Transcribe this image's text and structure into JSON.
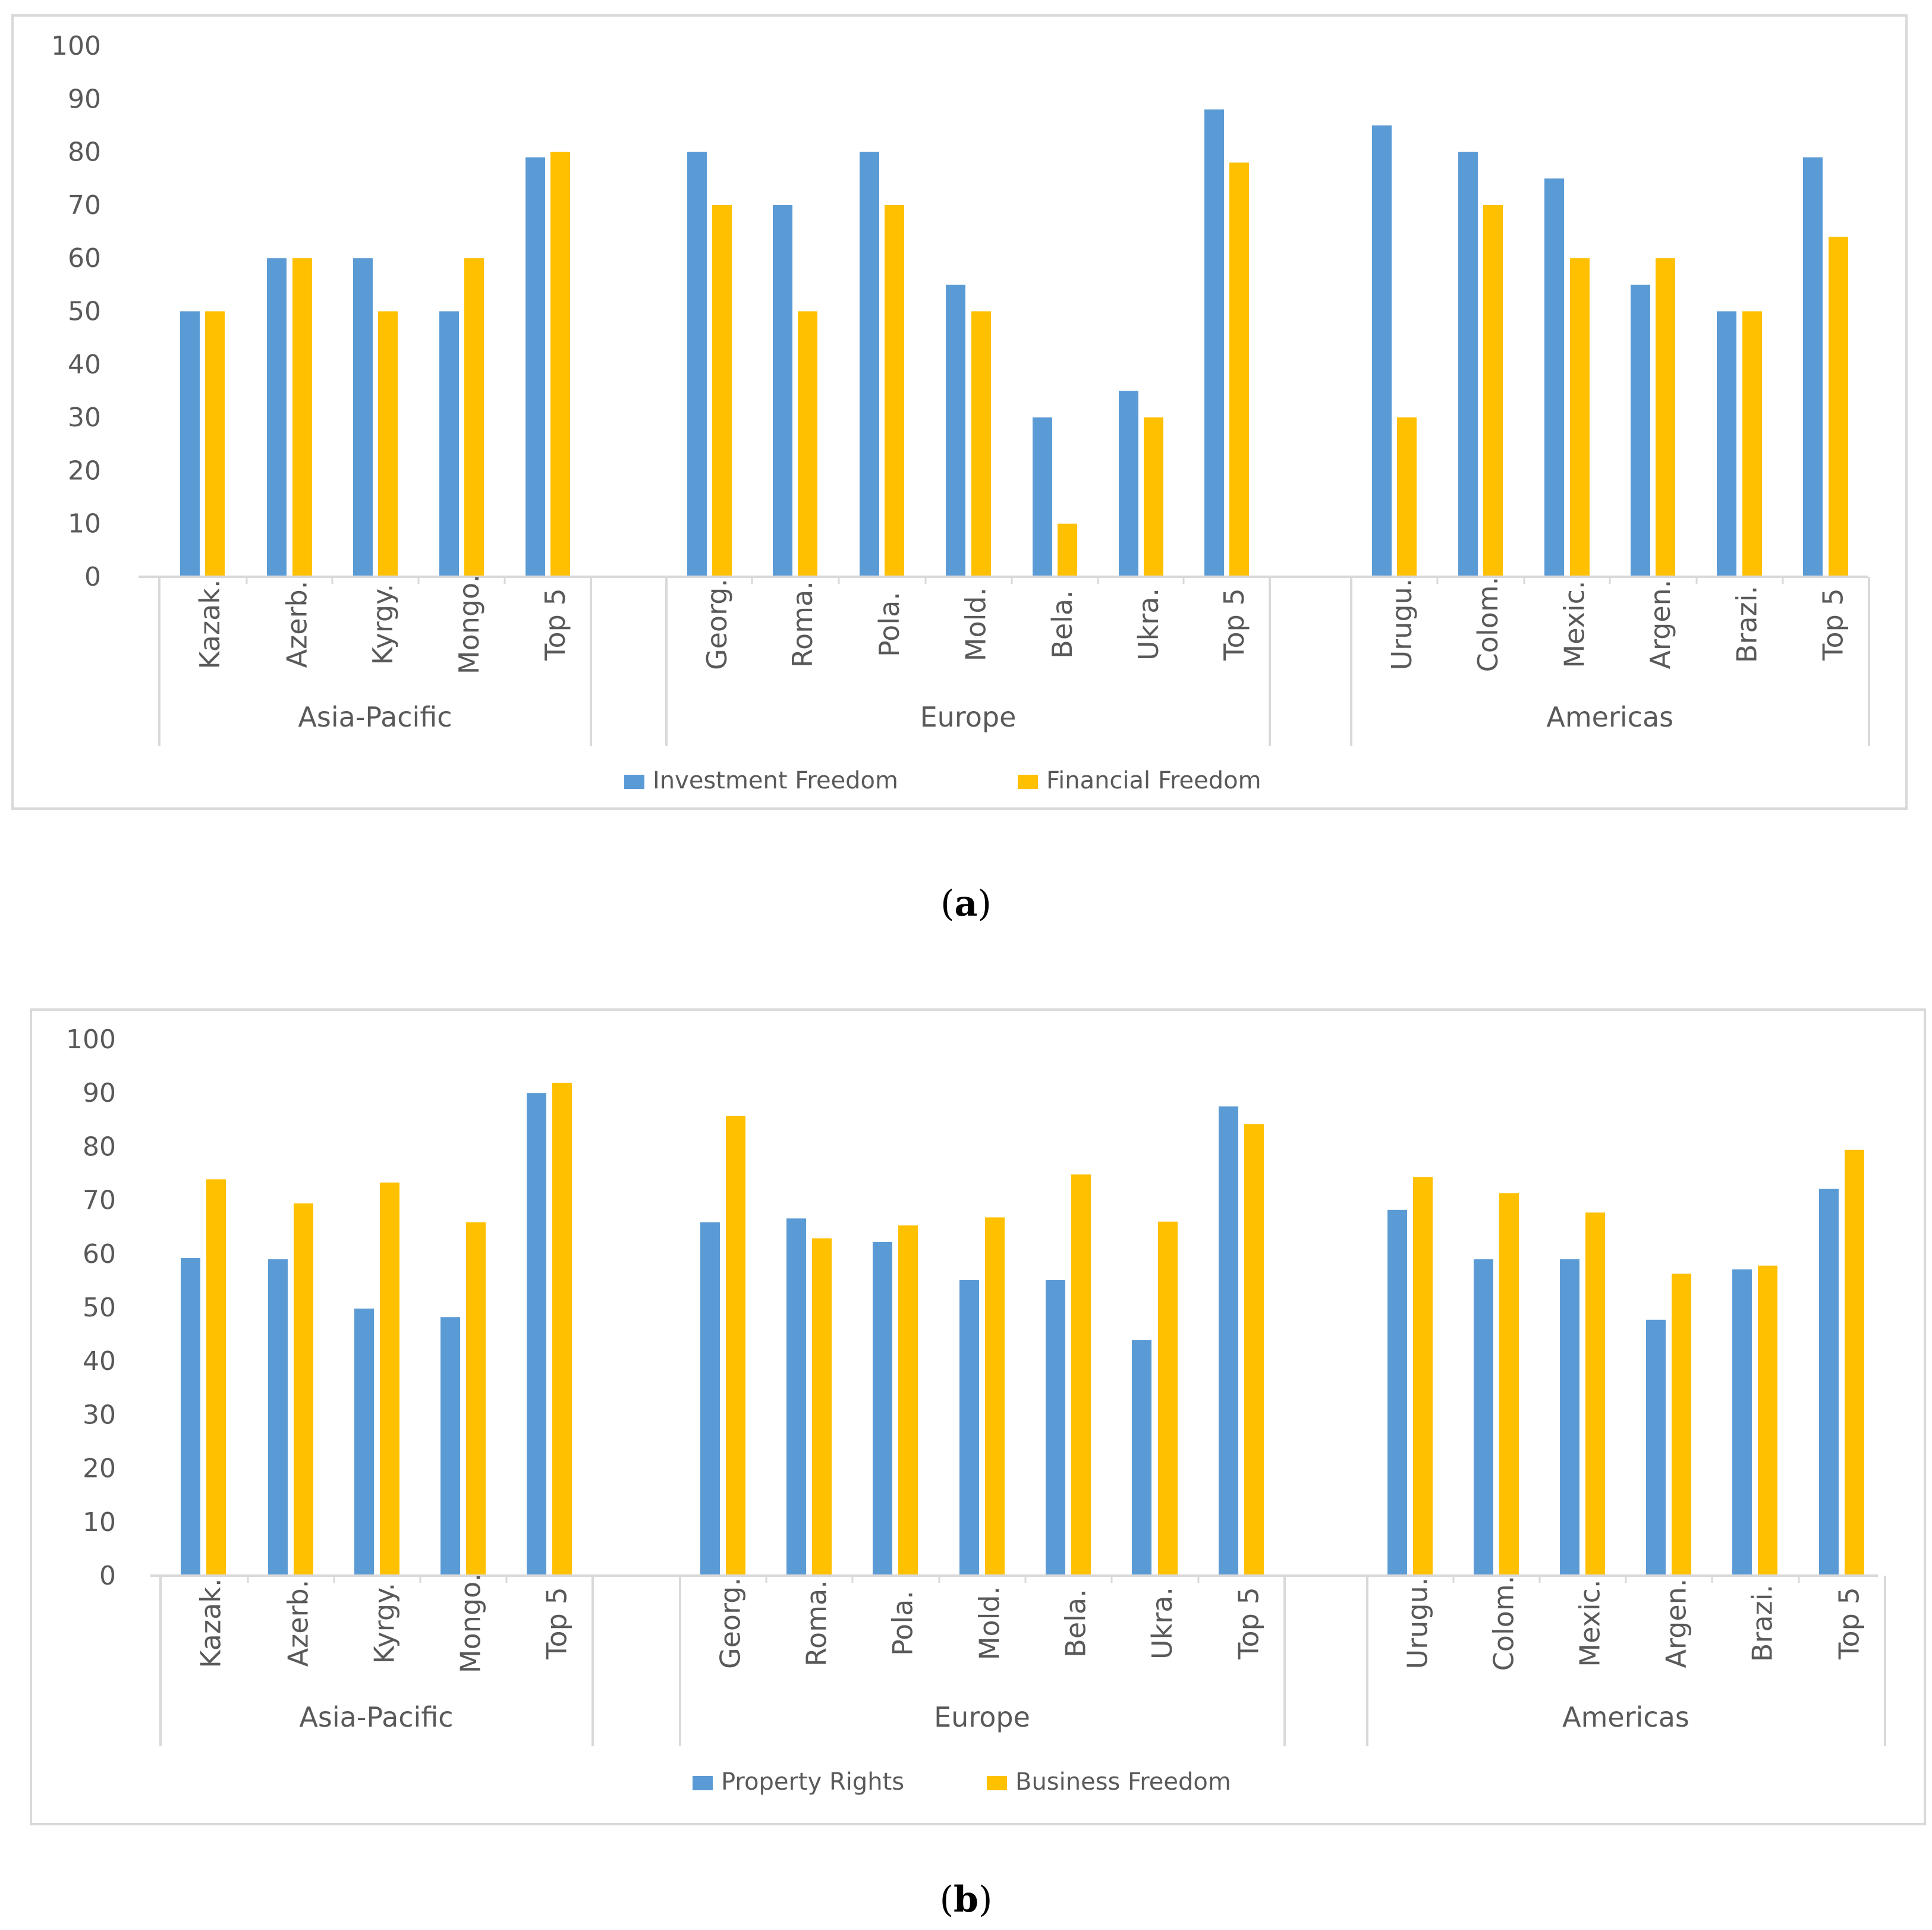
{
  "colors": {
    "series_a": "#5B9BD5",
    "series_b": "#FFC000",
    "frame": "#D9D9D9",
    "axis": "#D9D9D9",
    "text": "#595959"
  },
  "chart_data": [
    {
      "type": "bar",
      "panel_label": "a",
      "title": "",
      "xlabel": "",
      "ylabel": "",
      "ylim": [
        0,
        100
      ],
      "yticks": [
        "0",
        "10",
        "20",
        "30",
        "40",
        "50",
        "60",
        "70",
        "80",
        "90",
        "100"
      ],
      "grid": false,
      "legend_position": "bottom",
      "groups": [
        {
          "name": "Asia-Pacific",
          "categories": [
            "Kazak.",
            "Azerb.",
            "Kyrgy.",
            "Mongo.",
            "Top 5"
          ]
        },
        {
          "name": "Europe",
          "categories": [
            "Georg.",
            "Roma.",
            "Pola.",
            "Mold.",
            "Bela.",
            "Ukra.",
            "Top 5"
          ]
        },
        {
          "name": "Americas",
          "categories": [
            "Urugu.",
            "Colom.",
            "Mexic.",
            "Argen.",
            "Brazi.",
            "Top 5"
          ]
        }
      ],
      "series": [
        {
          "name": "Investment Freedom",
          "values": [
            50,
            60,
            60,
            50,
            79,
            80,
            70,
            80,
            55,
            30,
            35,
            88,
            85,
            80,
            75,
            55,
            50,
            79
          ]
        },
        {
          "name": "Financial Freedom",
          "values": [
            50,
            60,
            50,
            60,
            80,
            70,
            50,
            70,
            50,
            10,
            30,
            78,
            30,
            70,
            60,
            60,
            50,
            64
          ]
        }
      ]
    },
    {
      "type": "bar",
      "panel_label": "b",
      "title": "",
      "xlabel": "",
      "ylabel": "",
      "ylim": [
        0,
        100
      ],
      "yticks": [
        "0",
        "10",
        "20",
        "30",
        "40",
        "50",
        "60",
        "70",
        "80",
        "90",
        "100"
      ],
      "grid": false,
      "legend_position": "bottom",
      "groups": [
        {
          "name": "Asia-Pacific",
          "categories": [
            "Kazak.",
            "Azerb.",
            "Kyrgy.",
            "Mongo.",
            "Top 5"
          ]
        },
        {
          "name": "Europe",
          "categories": [
            "Georg.",
            "Roma.",
            "Pola.",
            "Mold.",
            "Bela.",
            "Ukra.",
            "Top 5"
          ]
        },
        {
          "name": "Americas",
          "categories": [
            "Urugu.",
            "Colom.",
            "Mexic.",
            "Argen.",
            "Brazi.",
            "Top 5"
          ]
        }
      ],
      "series": [
        {
          "name": "Property Rights",
          "values": [
            59.2,
            59,
            49.8,
            48.2,
            90,
            65.9,
            66.6,
            62.2,
            55.1,
            55.1,
            43.9,
            87.5,
            68.2,
            59,
            59,
            47.7,
            57.1,
            72.1
          ]
        },
        {
          "name": "Business Freedom",
          "values": [
            73.9,
            69.4,
            73.3,
            65.9,
            91.9,
            85.7,
            62.9,
            65.3,
            66.8,
            74.8,
            66,
            84.2,
            74.3,
            71.3,
            67.7,
            56.3,
            57.8,
            79.4
          ]
        }
      ]
    }
  ]
}
